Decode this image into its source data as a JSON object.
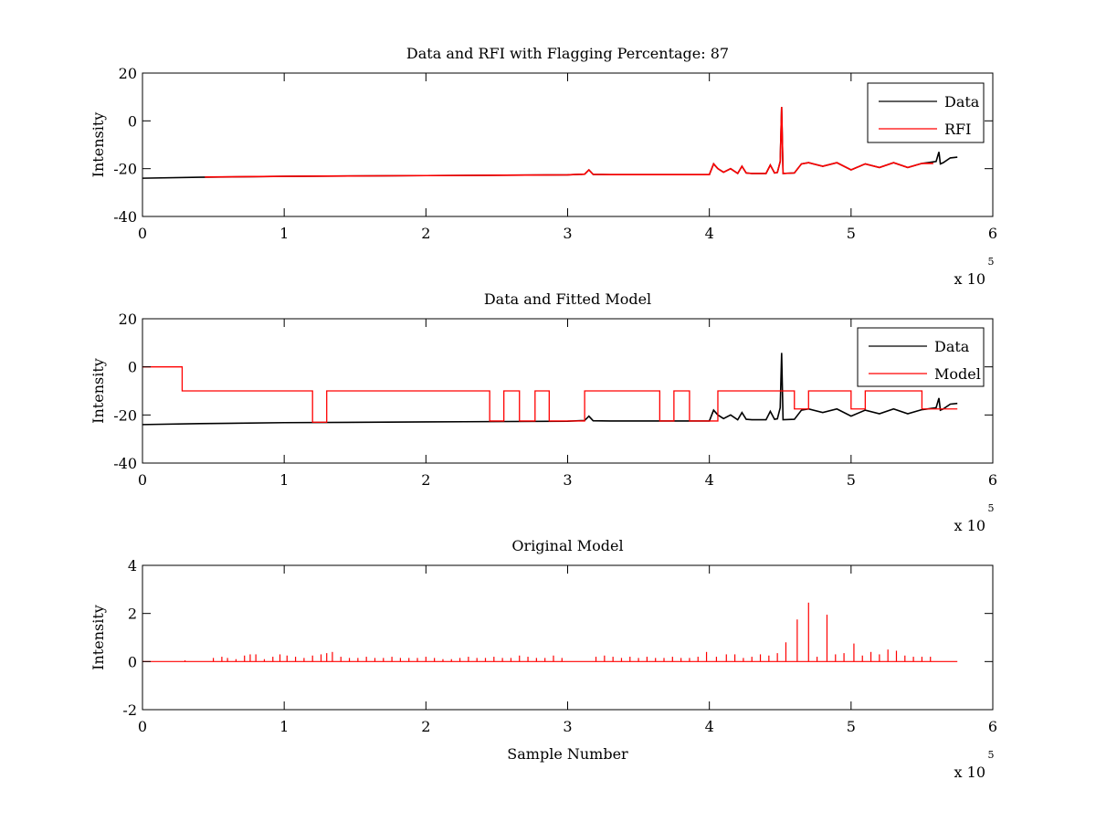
{
  "chart_data": [
    {
      "type": "line",
      "title": "Data and RFI with Flagging Percentage: 87",
      "xlabel": "",
      "ylabel": "Intensity",
      "xlim": [
        0,
        600000
      ],
      "ylim": [
        -40,
        20
      ],
      "xticks": [
        0,
        100000,
        200000,
        300000,
        400000,
        500000,
        600000
      ],
      "xticklabels": [
        "0",
        "1",
        "2",
        "3",
        "4",
        "5",
        "6"
      ],
      "yticks": [
        -40,
        -20,
        0,
        20
      ],
      "yticklabels": [
        "-40",
        "-20",
        "0",
        "20"
      ],
      "x_multiplier": {
        "base": "x 10",
        "exponent": "5"
      },
      "legend_position": "top-right",
      "series": [
        {
          "name": "Data",
          "color": "#000000",
          "x": [
            0,
            40000,
            100000,
            200000,
            300000,
            312000,
            315000,
            318000,
            330000,
            400000,
            403000,
            406000,
            410000,
            415000,
            420000,
            423000,
            426000,
            430000,
            440000,
            443000,
            446000,
            448000,
            450000,
            451000,
            452000,
            460000,
            465000,
            470000,
            480000,
            490000,
            500000,
            510000,
            520000,
            530000,
            540000,
            550000,
            560000,
            562000,
            563000,
            565000,
            570000,
            575000
          ],
          "y": [
            -24,
            -23.6,
            -23.2,
            -22.9,
            -22.6,
            -22.3,
            -20.5,
            -22.4,
            -22.5,
            -22.5,
            -18,
            -20,
            -21.5,
            -20,
            -22,
            -19,
            -21.8,
            -22,
            -22,
            -18.5,
            -21.8,
            -21.6,
            -17,
            5.8,
            -22,
            -21.8,
            -18,
            -17.5,
            -19,
            -17.5,
            -20.5,
            -18,
            -19.5,
            -17.5,
            -19.5,
            -17.8,
            -17,
            -13,
            -18,
            -17.5,
            -15.5,
            -15.2
          ]
        },
        {
          "name": "RFI",
          "color": "#ff0000",
          "x": [
            44000,
            100000,
            200000,
            300000,
            312000,
            315000,
            318000,
            330000,
            400000,
            403000,
            406000,
            410000,
            415000,
            420000,
            423000,
            426000,
            430000,
            440000,
            443000,
            446000,
            448000,
            450000,
            451000,
            452000,
            460000,
            465000,
            470000,
            480000,
            490000,
            500000,
            510000,
            520000,
            530000,
            540000,
            550000,
            558000
          ],
          "y": [
            -23.5,
            -23.2,
            -22.9,
            -22.6,
            -22.3,
            -20.5,
            -22.4,
            -22.5,
            -22.5,
            -18,
            -20,
            -21.5,
            -20,
            -22,
            -19,
            -21.8,
            -22,
            -22,
            -18.5,
            -21.8,
            -21.6,
            -17,
            5.8,
            -22,
            -21.8,
            -18,
            -17.5,
            -19,
            -17.5,
            -20.5,
            -18,
            -19.5,
            -17.5,
            -19.5,
            -17.8,
            -17.8
          ]
        }
      ]
    },
    {
      "type": "line",
      "title": "Data and Fitted Model",
      "xlabel": "",
      "ylabel": "Intensity",
      "xlim": [
        0,
        600000
      ],
      "ylim": [
        -40,
        20
      ],
      "xticks": [
        0,
        100000,
        200000,
        300000,
        400000,
        500000,
        600000
      ],
      "xticklabels": [
        "0",
        "1",
        "2",
        "3",
        "4",
        "5",
        "6"
      ],
      "yticks": [
        -40,
        -20,
        0,
        20
      ],
      "yticklabels": [
        "-40",
        "-20",
        "0",
        "20"
      ],
      "x_multiplier": {
        "base": "x 10",
        "exponent": "5"
      },
      "legend_position": "top-right",
      "series": [
        {
          "name": "Data",
          "color": "#000000",
          "x": [
            0,
            40000,
            100000,
            200000,
            300000,
            312000,
            315000,
            318000,
            330000,
            400000,
            403000,
            406000,
            410000,
            415000,
            420000,
            423000,
            426000,
            430000,
            440000,
            443000,
            446000,
            448000,
            450000,
            451000,
            452000,
            460000,
            465000,
            470000,
            480000,
            490000,
            500000,
            510000,
            520000,
            530000,
            540000,
            550000,
            560000,
            562000,
            563000,
            565000,
            570000,
            575000
          ],
          "y": [
            -24,
            -23.6,
            -23.2,
            -22.9,
            -22.6,
            -22.3,
            -20.5,
            -22.4,
            -22.5,
            -22.5,
            -18,
            -20,
            -21.5,
            -20,
            -22,
            -19,
            -21.8,
            -22,
            -22,
            -18.5,
            -21.8,
            -21.6,
            -17,
            5.8,
            -22,
            -21.8,
            -18,
            -17.5,
            -19,
            -17.5,
            -20.5,
            -18,
            -19.5,
            -17.5,
            -19.5,
            -17.8,
            -17,
            -13,
            -18,
            -17.5,
            -15.5,
            -15.2
          ]
        },
        {
          "name": "Model",
          "color": "#ff0000",
          "step": true,
          "x": [
            0,
            28000,
            120000,
            130000,
            245000,
            255000,
            266000,
            277000,
            287000,
            297000,
            312000,
            365000,
            375000,
            386000,
            396000,
            406000,
            460000,
            470000,
            500000,
            510000,
            550000,
            575000
          ],
          "y": [
            0,
            -10,
            -23,
            -10,
            -22.5,
            -10,
            -22.5,
            -10,
            -22.5,
            -22.5,
            -10,
            -22.5,
            -10,
            -22.5,
            -22.5,
            -10,
            -17.5,
            -10,
            -17.5,
            -10,
            -17.5,
            -17.5
          ]
        }
      ]
    },
    {
      "type": "line",
      "title": "Original Model",
      "xlabel": "Sample Number",
      "ylabel": "Intensity",
      "xlim": [
        0,
        600000
      ],
      "ylim": [
        -2,
        4
      ],
      "xticks": [
        0,
        100000,
        200000,
        300000,
        400000,
        500000,
        600000
      ],
      "xticklabels": [
        "0",
        "1",
        "2",
        "3",
        "4",
        "5",
        "6"
      ],
      "yticks": [
        -2,
        0,
        2,
        4
      ],
      "yticklabels": [
        "-2",
        "0",
        "2",
        "4"
      ],
      "x_multiplier": {
        "base": "x 10",
        "exponent": "5"
      },
      "series": [
        {
          "color": "#ff0000",
          "baseline": {
            "x": [
              0,
              575000
            ],
            "y": 0
          },
          "spikes_x": [
            30000,
            50000,
            56000,
            60000,
            66000,
            72000,
            76000,
            80000,
            86000,
            92000,
            97000,
            102000,
            108000,
            114000,
            120000,
            126000,
            130000,
            134000,
            140000,
            146000,
            152000,
            158000,
            164000,
            170000,
            176000,
            182000,
            188000,
            194000,
            200000,
            206000,
            212000,
            218000,
            224000,
            230000,
            236000,
            242000,
            248000,
            254000,
            260000,
            266000,
            272000,
            278000,
            284000,
            290000,
            296000,
            320000,
            326000,
            332000,
            338000,
            344000,
            350000,
            356000,
            362000,
            368000,
            374000,
            380000,
            386000,
            392000,
            398000,
            405000,
            412000,
            418000,
            424000,
            430000,
            436000,
            442000,
            448000,
            454000,
            462000,
            470000,
            476000,
            483000,
            489000,
            495000,
            502000,
            508000,
            514000,
            520000,
            526000,
            532000,
            538000,
            544000,
            550000,
            556000
          ],
          "spikes_y": [
            0.05,
            0.15,
            0.2,
            0.15,
            0.1,
            0.25,
            0.3,
            0.3,
            0.1,
            0.2,
            0.3,
            0.25,
            0.2,
            0.15,
            0.25,
            0.3,
            0.35,
            0.4,
            0.2,
            0.15,
            0.15,
            0.2,
            0.15,
            0.15,
            0.2,
            0.15,
            0.15,
            0.15,
            0.2,
            0.15,
            0.1,
            0.1,
            0.15,
            0.2,
            0.15,
            0.15,
            0.2,
            0.15,
            0.15,
            0.25,
            0.2,
            0.15,
            0.15,
            0.25,
            0.15,
            0.2,
            0.25,
            0.2,
            0.15,
            0.2,
            0.15,
            0.2,
            0.15,
            0.15,
            0.2,
            0.15,
            0.15,
            0.2,
            0.4,
            0.2,
            0.3,
            0.3,
            0.15,
            0.2,
            0.3,
            0.25,
            0.35,
            0.8,
            1.75,
            2.45,
            0.2,
            1.95,
            0.3,
            0.35,
            0.75,
            0.25,
            0.4,
            0.3,
            0.5,
            0.45,
            0.25,
            0.2,
            0.2,
            0.2
          ]
        }
      ]
    }
  ]
}
